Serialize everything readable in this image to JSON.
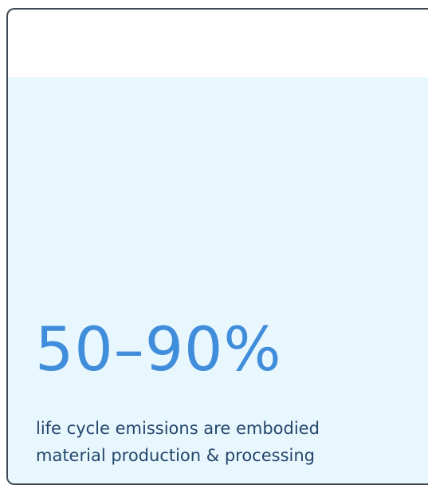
{
  "stat": {
    "value": "50–90%",
    "description": [
      "life cycle emissions are embodied",
      "material production & processing"
    ]
  }
}
